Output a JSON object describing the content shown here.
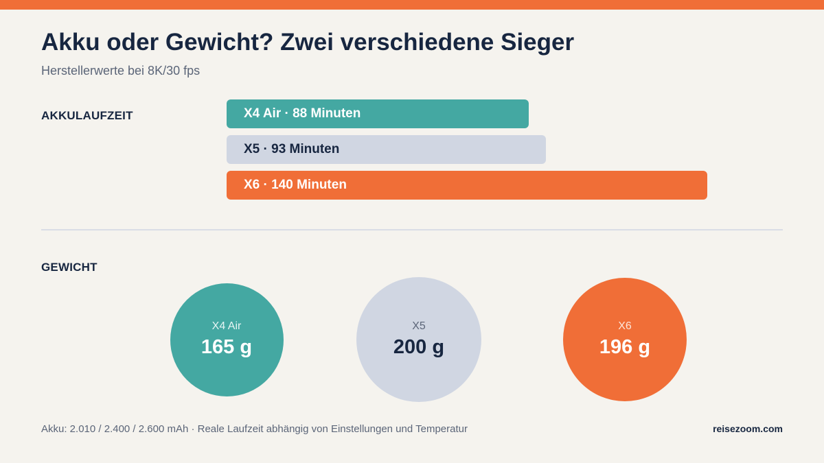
{
  "colors": {
    "accent": "#f06e37",
    "teal": "#44a8a2",
    "gray": "#d0d6e2",
    "navy": "#172640",
    "background": "#f5f3ee"
  },
  "title": "Akku oder Gewicht? Zwei verschiedene Sieger",
  "subtitle": "Herstellerwerte bei 8K/30 fps",
  "chart_data": [
    {
      "type": "bar",
      "orientation": "horizontal",
      "title": "AKKULAUFZEIT",
      "unit": "Minuten",
      "categories": [
        "X4 Air",
        "X5",
        "X6"
      ],
      "values": [
        88,
        93,
        140
      ],
      "bar_labels": [
        "X4 Air · 88 Minuten",
        "X5 · 93 Minuten",
        "X6 · 140 Minuten"
      ],
      "colors": [
        "#44a8a2",
        "#d0d6e2",
        "#f06e37"
      ],
      "text_colors": [
        "#ffffff",
        "#172640",
        "#ffffff"
      ],
      "xlim": [
        0,
        140
      ],
      "grid": false,
      "legend": "none"
    },
    {
      "type": "bubble",
      "title": "GEWICHT",
      "unit": "g",
      "categories": [
        "X4 Air",
        "X5",
        "X6"
      ],
      "values": [
        165,
        200,
        196
      ],
      "value_labels": [
        "165 g",
        "200 g",
        "196 g"
      ],
      "colors": [
        "#44a8a2",
        "#d0d6e2",
        "#f06e37"
      ],
      "text_colors": [
        "#ffffff",
        "#172640",
        "#ffffff"
      ],
      "name_colors": [
        "#e6f5f4",
        "#5b6578",
        "#fde6da"
      ],
      "legend": "none"
    }
  ],
  "footnote": "Akku: 2.010 / 2.400 / 2.600 mAh · Reale Laufzeit abhängig von Einstellungen und Temperatur",
  "source": "reisezoom.com"
}
